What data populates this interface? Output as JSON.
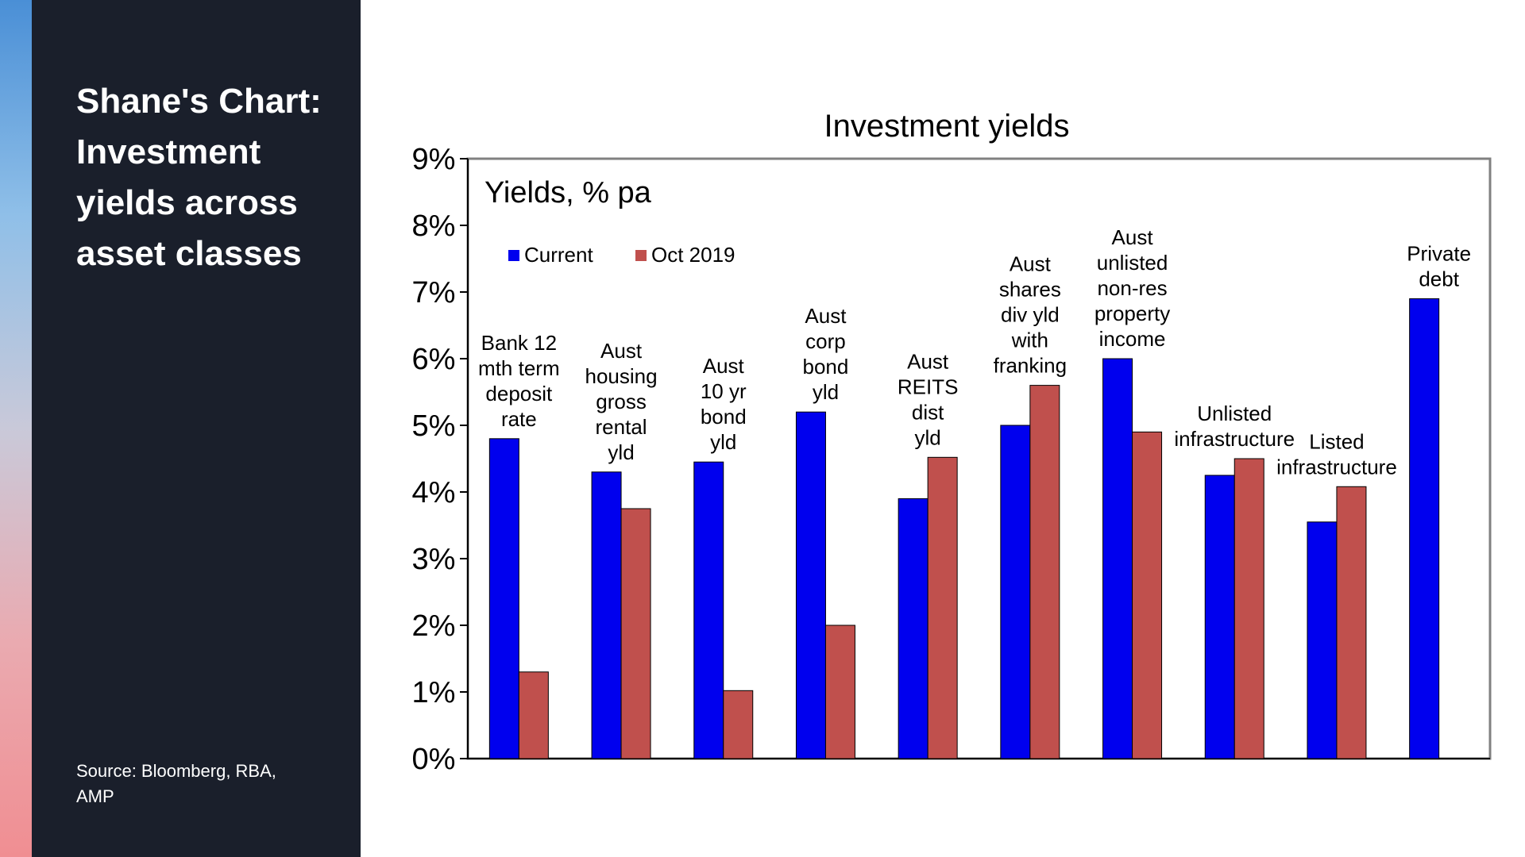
{
  "sidebar": {
    "title": "Shane's Chart: Investment yields across asset classes",
    "source": "Source: Bloomberg, RBA, AMP"
  },
  "colors": {
    "sidebar_bg": "#1a1f2b",
    "series_current": "#0000ee",
    "series_oct2019": "#c0504d"
  },
  "chart_data": {
    "type": "bar",
    "title": "Investment yields",
    "subtitle": "Yields, % pa",
    "xlabel": "",
    "ylabel": "",
    "ylim": [
      0,
      9
    ],
    "yticks": [
      "0%",
      "1%",
      "2%",
      "3%",
      "4%",
      "5%",
      "6%",
      "7%",
      "8%",
      "9%"
    ],
    "grid": false,
    "legend_position": "top-left",
    "categories": [
      [
        "Bank 12",
        "mth term",
        "deposit",
        "rate"
      ],
      [
        "Aust",
        "housing",
        "gross",
        "rental",
        "yld"
      ],
      [
        "Aust",
        "10 yr",
        "bond",
        "yld"
      ],
      [
        "Aust",
        "corp",
        "bond",
        "yld"
      ],
      [
        "Aust",
        "REITS",
        "dist",
        "yld"
      ],
      [
        "Aust",
        "shares",
        "div yld",
        "with",
        "franking"
      ],
      [
        "Aust",
        "unlisted",
        "non-res",
        "property",
        "income"
      ],
      [
        "Unlisted",
        "infrastructure"
      ],
      [
        "Listed",
        "infrastructure"
      ],
      [
        "Private",
        "debt"
      ]
    ],
    "series": [
      {
        "name": "Current",
        "color": "#0000ee",
        "values": [
          4.8,
          4.3,
          4.45,
          5.2,
          3.9,
          5.0,
          6.0,
          4.25,
          3.55,
          6.9
        ]
      },
      {
        "name": "Oct 2019",
        "color": "#c0504d",
        "values": [
          1.3,
          3.75,
          1.02,
          2.0,
          4.52,
          5.6,
          4.9,
          4.5,
          4.08,
          null
        ]
      }
    ]
  }
}
